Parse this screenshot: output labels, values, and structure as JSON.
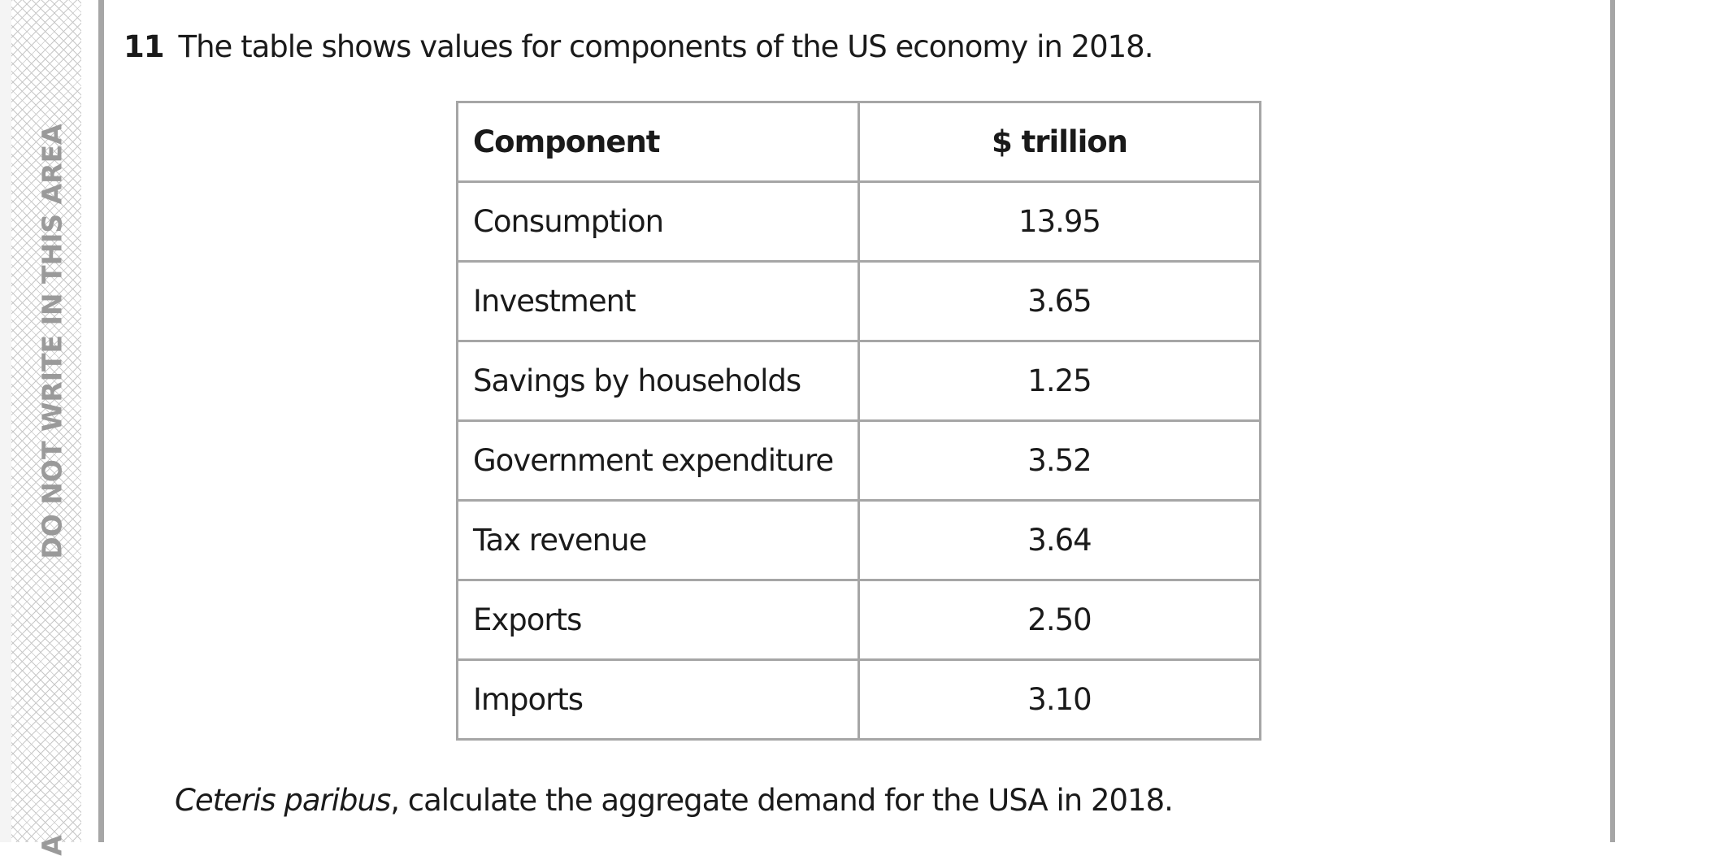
{
  "margin_notice": "DO NOT WRITE IN THIS AREA",
  "margin_notice_fragment": "A",
  "question": {
    "number": "11",
    "text": "The table shows values for components of the US economy in 2018."
  },
  "table": {
    "headers": [
      "Component",
      "$ trillion"
    ],
    "rows": [
      [
        "Consumption",
        "13.95"
      ],
      [
        "Investment",
        "3.65"
      ],
      [
        "Savings by households",
        "1.25"
      ],
      [
        "Government expenditure",
        "3.52"
      ],
      [
        "Tax revenue",
        "3.64"
      ],
      [
        "Exports",
        "2.50"
      ],
      [
        "Imports",
        "3.10"
      ]
    ]
  },
  "prompt": {
    "italic": "Ceteris paribus",
    "rest": ", calculate the aggregate demand for the USA in 2018."
  }
}
